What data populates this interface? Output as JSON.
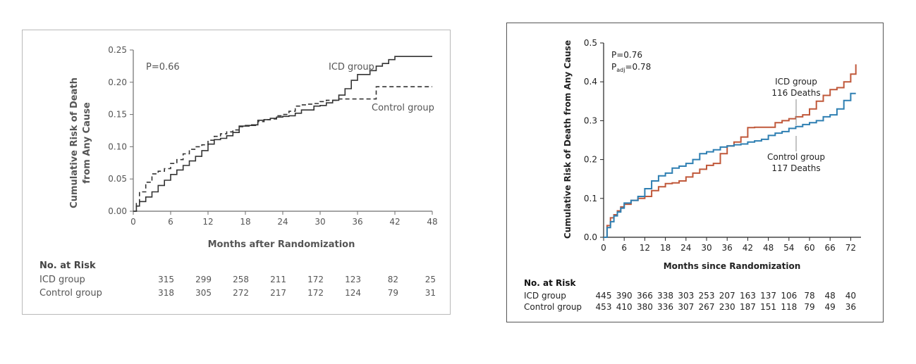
{
  "colors": {
    "left_axis": "#6e6e6e",
    "left_text": "#555555",
    "left_line": "#333333",
    "right_axis": "#222222",
    "right_icd": "#c0583a",
    "right_control": "#2e7fb2"
  },
  "chart_data": [
    {
      "type": "line",
      "title": "",
      "xlabel": "Months after Randomization",
      "ylabel": "Cumulative Risk of Death",
      "ylabel2": "from Any Cause",
      "xlim": [
        0,
        48
      ],
      "ylim": [
        0,
        0.25
      ],
      "xticks": [
        "0",
        "6",
        "12",
        "18",
        "24",
        "30",
        "36",
        "42",
        "48"
      ],
      "yticks": [
        "0.00",
        "0.05",
        "0.10",
        "0.15",
        "0.20",
        "0.25"
      ],
      "annotation_p": "P=0.66",
      "series": [
        {
          "name": "ICD group",
          "style": "solid",
          "x": [
            0,
            0.5,
            1,
            2,
            3,
            4,
            5,
            6,
            7,
            8,
            9,
            10,
            11,
            12,
            13,
            14,
            15,
            16,
            17,
            18,
            19,
            20,
            21,
            22,
            23,
            24,
            25,
            26,
            27,
            28,
            29,
            30,
            31,
            32,
            33,
            34,
            35,
            36,
            37,
            38,
            39,
            40,
            41,
            42,
            45,
            48
          ],
          "y": [
            0,
            0.008,
            0.015,
            0.022,
            0.03,
            0.04,
            0.048,
            0.057,
            0.064,
            0.071,
            0.078,
            0.085,
            0.094,
            0.104,
            0.111,
            0.113,
            0.117,
            0.122,
            0.132,
            0.133,
            0.134,
            0.141,
            0.142,
            0.144,
            0.146,
            0.147,
            0.148,
            0.152,
            0.157,
            0.157,
            0.163,
            0.164,
            0.168,
            0.172,
            0.18,
            0.19,
            0.203,
            0.212,
            0.212,
            0.218,
            0.225,
            0.229,
            0.235,
            0.24,
            0.24,
            0.24
          ]
        },
        {
          "name": "Control group",
          "style": "dashed",
          "x": [
            0,
            0.5,
            1,
            2,
            3,
            4,
            5,
            6,
            7,
            8,
            9,
            10,
            11,
            12,
            13,
            14,
            15,
            16,
            17,
            18,
            19,
            20,
            21,
            22,
            23,
            24,
            25,
            26,
            27,
            28,
            29,
            30,
            31,
            32,
            33,
            34,
            35,
            36,
            37,
            38,
            39,
            40,
            41,
            44,
            48
          ],
          "y": [
            0,
            0.012,
            0.03,
            0.045,
            0.058,
            0.062,
            0.066,
            0.074,
            0.08,
            0.089,
            0.096,
            0.1,
            0.103,
            0.11,
            0.116,
            0.12,
            0.123,
            0.126,
            0.131,
            0.132,
            0.133,
            0.139,
            0.142,
            0.143,
            0.148,
            0.15,
            0.155,
            0.163,
            0.165,
            0.166,
            0.167,
            0.17,
            0.172,
            0.172,
            0.174,
            0.174,
            0.174,
            0.174,
            0.174,
            0.174,
            0.193,
            0.193,
            0.193,
            0.193,
            0.193
          ]
        }
      ],
      "risk_table": {
        "title": "No. at Risk",
        "rows": [
          {
            "label": "ICD group",
            "values": [
              315,
              299,
              258,
              211,
              172,
              123,
              82,
              25
            ]
          },
          {
            "label": "Control group",
            "values": [
              318,
              305,
              272,
              217,
              172,
              124,
              79,
              31
            ]
          }
        ]
      }
    },
    {
      "type": "line",
      "title": "",
      "xlabel": "Months since Randomization",
      "ylabel": "Cumulative Risk of Death from Any Cause",
      "xlim": [
        0,
        75
      ],
      "ylim": [
        0,
        0.5
      ],
      "xticks": [
        "0",
        "6",
        "12",
        "18",
        "24",
        "30",
        "36",
        "42",
        "48",
        "54",
        "60",
        "66",
        "72"
      ],
      "yticks": [
        "0.0",
        "0.1",
        "0.2",
        "0.3",
        "0.4",
        "0.5"
      ],
      "annotation_p": "P=0.76",
      "annotation_padj_prefix": "P",
      "annotation_padj_sub": "adj",
      "annotation_padj_value": "=0.78",
      "series": [
        {
          "name": "ICD group",
          "deaths": "116 Deaths",
          "color_key": "right_icd",
          "x": [
            0,
            1,
            2,
            3,
            4,
            5,
            6,
            8,
            10,
            12,
            14,
            16,
            18,
            20,
            22,
            24,
            26,
            28,
            30,
            32,
            34,
            36,
            38,
            40,
            42,
            44,
            46,
            48,
            50,
            52,
            54,
            56,
            58,
            60,
            62,
            64,
            66,
            68,
            70,
            72,
            73.5
          ],
          "y": [
            0,
            0.03,
            0.05,
            0.058,
            0.068,
            0.078,
            0.085,
            0.095,
            0.1,
            0.105,
            0.12,
            0.13,
            0.138,
            0.14,
            0.145,
            0.155,
            0.165,
            0.175,
            0.185,
            0.19,
            0.215,
            0.235,
            0.245,
            0.258,
            0.282,
            0.283,
            0.283,
            0.283,
            0.295,
            0.3,
            0.305,
            0.31,
            0.315,
            0.33,
            0.35,
            0.365,
            0.38,
            0.385,
            0.4,
            0.42,
            0.445
          ]
        },
        {
          "name": "Control group",
          "deaths": "117 Deaths",
          "color_key": "right_control",
          "x": [
            0,
            1,
            2,
            3,
            4,
            5,
            6,
            8,
            10,
            12,
            14,
            16,
            18,
            20,
            22,
            24,
            26,
            28,
            30,
            32,
            34,
            36,
            38,
            40,
            42,
            44,
            46,
            48,
            50,
            52,
            54,
            56,
            58,
            60,
            62,
            64,
            66,
            68,
            70,
            72,
            73.5
          ],
          "y": [
            0,
            0.025,
            0.04,
            0.055,
            0.065,
            0.075,
            0.088,
            0.095,
            0.105,
            0.125,
            0.145,
            0.158,
            0.165,
            0.178,
            0.183,
            0.19,
            0.2,
            0.215,
            0.22,
            0.225,
            0.232,
            0.235,
            0.238,
            0.24,
            0.245,
            0.248,
            0.252,
            0.262,
            0.268,
            0.272,
            0.28,
            0.285,
            0.29,
            0.295,
            0.3,
            0.31,
            0.315,
            0.33,
            0.352,
            0.37,
            0.37
          ]
        }
      ],
      "risk_table": {
        "title": "No. at Risk",
        "rows": [
          {
            "label": "ICD group",
            "values": [
              445,
              390,
              366,
              338,
              303,
              253,
              207,
              163,
              137,
              106,
              78,
              48,
              40
            ]
          },
          {
            "label": "Control group",
            "values": [
              453,
              410,
              380,
              336,
              307,
              267,
              230,
              187,
              151,
              118,
              79,
              49,
              36
            ]
          }
        ]
      }
    }
  ]
}
